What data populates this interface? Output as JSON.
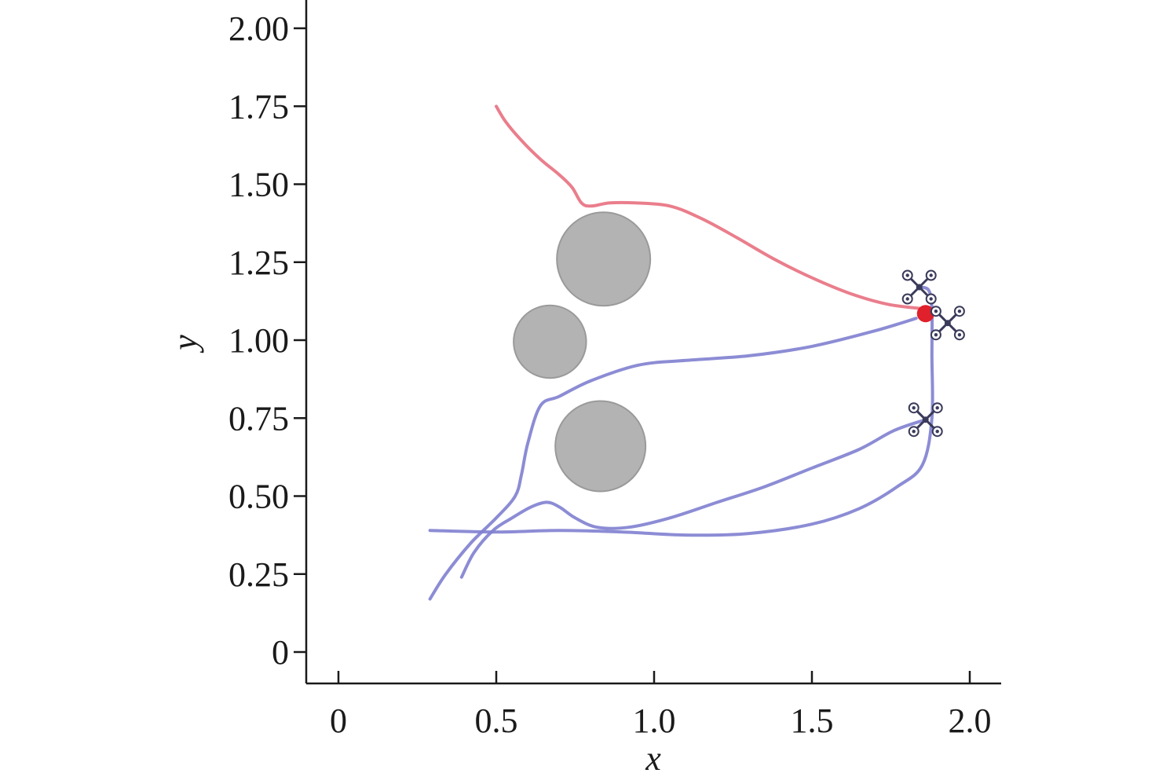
{
  "chart_data": {
    "type": "line",
    "title": "",
    "xlabel": "x",
    "ylabel": "y",
    "xlim": [
      -0.1,
      2.1
    ],
    "ylim": [
      -0.1,
      2.1
    ],
    "x_ticks": [
      0,
      0.5,
      1.0,
      1.5,
      2.0
    ],
    "x_tick_labels": [
      "0",
      "0.5",
      "1.0",
      "1.5",
      "2.0"
    ],
    "y_ticks": [
      0,
      0.25,
      0.5,
      0.75,
      1.0,
      1.25,
      1.5,
      1.75,
      2.0
    ],
    "y_tick_labels": [
      "0",
      "0.25",
      "0.50",
      "0.75",
      "1.00",
      "1.25",
      "1.50",
      "1.75",
      "2.00"
    ],
    "grid": false,
    "legend": "none",
    "colors": {
      "leader_path": "#e8707f",
      "follower_path": "#7f80d0",
      "obstacle": "#b3b3b3",
      "target": "#e0202a",
      "drone": "#3a3a5a"
    },
    "obstacles": [
      {
        "cx": 0.84,
        "cy": 1.26,
        "r": 0.148
      },
      {
        "cx": 0.67,
        "cy": 0.995,
        "r": 0.115
      },
      {
        "cx": 0.83,
        "cy": 0.66,
        "r": 0.143
      }
    ],
    "target_point": {
      "x": 1.86,
      "y": 1.085
    },
    "drones": [
      {
        "x": 1.84,
        "y": 1.17
      },
      {
        "x": 1.93,
        "y": 1.055
      },
      {
        "x": 1.86,
        "y": 0.745
      }
    ],
    "series": [
      {
        "color_key": "leader_path",
        "points": [
          [
            0.5,
            1.75
          ],
          [
            0.53,
            1.7
          ],
          [
            0.58,
            1.64
          ],
          [
            0.64,
            1.58
          ],
          [
            0.7,
            1.53
          ],
          [
            0.74,
            1.49
          ],
          [
            0.77,
            1.44
          ],
          [
            0.8,
            1.43
          ],
          [
            0.86,
            1.44
          ],
          [
            0.94,
            1.44
          ],
          [
            1.05,
            1.43
          ],
          [
            1.15,
            1.39
          ],
          [
            1.26,
            1.33
          ],
          [
            1.38,
            1.26
          ],
          [
            1.5,
            1.2
          ],
          [
            1.62,
            1.15
          ],
          [
            1.74,
            1.115
          ],
          [
            1.86,
            1.1
          ]
        ]
      },
      {
        "color_key": "follower_path",
        "points": [
          [
            0.29,
            0.17
          ],
          [
            0.34,
            0.25
          ],
          [
            0.42,
            0.35
          ],
          [
            0.5,
            0.43
          ],
          [
            0.56,
            0.5
          ],
          [
            0.58,
            0.57
          ],
          [
            0.6,
            0.67
          ],
          [
            0.64,
            0.79
          ],
          [
            0.7,
            0.82
          ],
          [
            0.8,
            0.87
          ],
          [
            0.95,
            0.92
          ],
          [
            1.1,
            0.935
          ],
          [
            1.3,
            0.95
          ],
          [
            1.5,
            0.98
          ],
          [
            1.7,
            1.03
          ],
          [
            1.83,
            1.07
          ]
        ]
      },
      {
        "color_key": "follower_path",
        "points": [
          [
            0.39,
            0.24
          ],
          [
            0.43,
            0.32
          ],
          [
            0.49,
            0.39
          ],
          [
            0.55,
            0.43
          ],
          [
            0.61,
            0.465
          ],
          [
            0.66,
            0.48
          ],
          [
            0.7,
            0.465
          ],
          [
            0.75,
            0.43
          ],
          [
            0.82,
            0.4
          ],
          [
            0.92,
            0.4
          ],
          [
            1.05,
            0.43
          ],
          [
            1.2,
            0.48
          ],
          [
            1.35,
            0.53
          ],
          [
            1.5,
            0.59
          ],
          [
            1.65,
            0.65
          ],
          [
            1.76,
            0.71
          ],
          [
            1.86,
            0.745
          ]
        ]
      },
      {
        "color_key": "follower_path",
        "points": [
          [
            0.29,
            0.39
          ],
          [
            0.5,
            0.385
          ],
          [
            0.7,
            0.39
          ],
          [
            0.9,
            0.385
          ],
          [
            1.1,
            0.375
          ],
          [
            1.3,
            0.38
          ],
          [
            1.5,
            0.41
          ],
          [
            1.65,
            0.46
          ],
          [
            1.77,
            0.53
          ],
          [
            1.85,
            0.6
          ],
          [
            1.88,
            0.75
          ],
          [
            1.88,
            0.95
          ],
          [
            1.88,
            1.1
          ],
          [
            1.87,
            1.16
          ],
          [
            1.84,
            1.17
          ]
        ]
      }
    ]
  }
}
